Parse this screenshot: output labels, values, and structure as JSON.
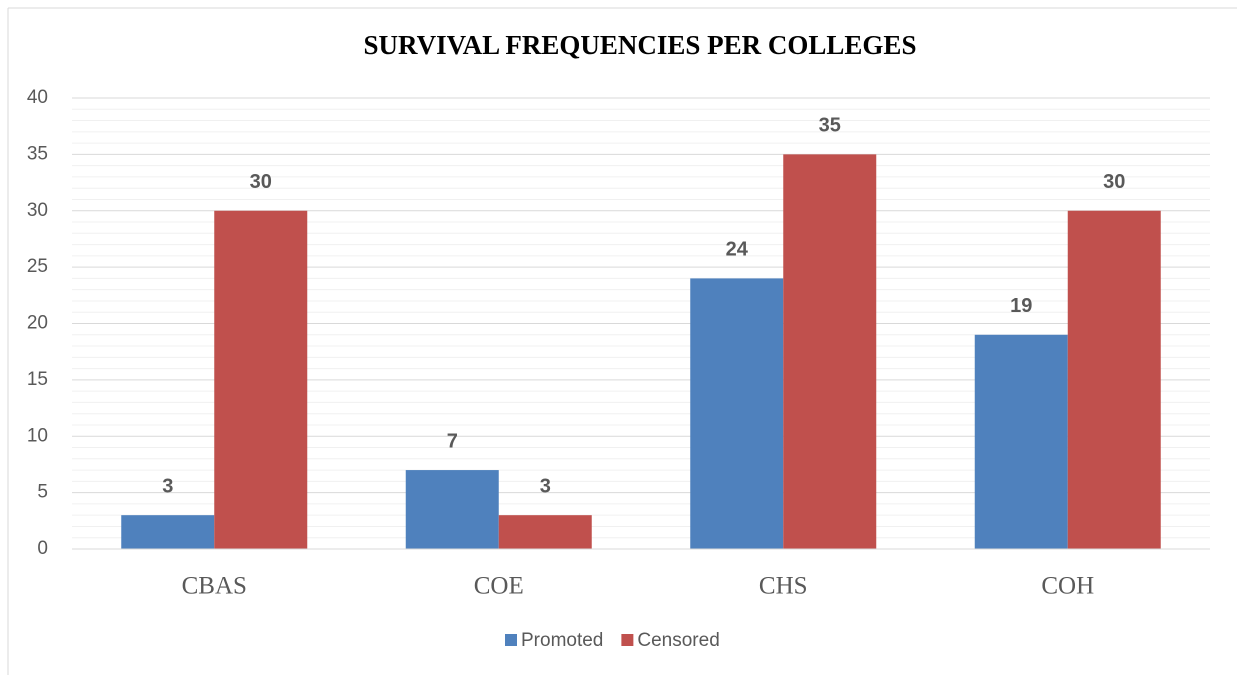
{
  "chart_data": {
    "type": "bar",
    "title": "SURVIVAL FREQUENCIES PER COLLEGES",
    "categories": [
      "CBAS",
      "COE",
      "CHS",
      "COH"
    ],
    "series": [
      {
        "name": "Promoted",
        "color": "#4f81bd",
        "values": [
          3,
          7,
          24,
          19
        ]
      },
      {
        "name": "Censored",
        "color": "#c0504d",
        "values": [
          30,
          3,
          35,
          30
        ]
      }
    ],
    "ylim": [
      0,
      40
    ],
    "yticks": [
      0,
      5,
      10,
      15,
      20,
      25,
      30,
      35,
      40
    ],
    "grid": true,
    "minor_grid": true,
    "legend": "bottom"
  }
}
